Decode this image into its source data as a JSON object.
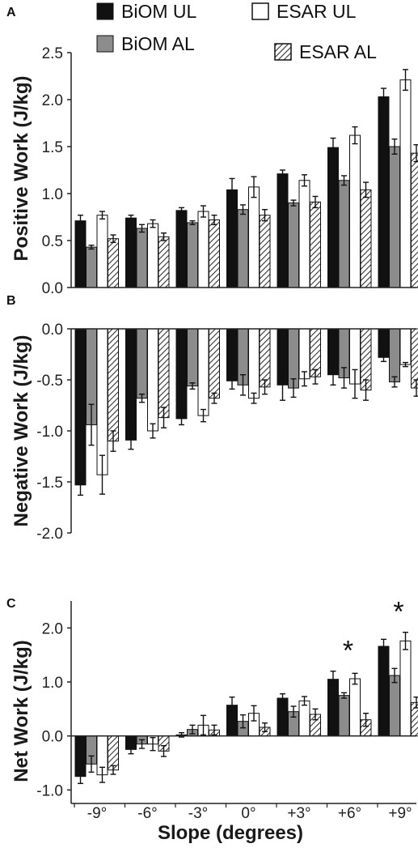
{
  "chart_data": [
    {
      "panel_label": "A",
      "type": "bar",
      "ylabel": "Positive Work (J/kg)",
      "ylim": [
        0,
        2.5
      ],
      "yticks": [
        "0.0",
        "0.5",
        "1.0",
        "1.5",
        "2.0",
        "2.5"
      ],
      "yticks_values": [
        0,
        0.5,
        1.0,
        1.5,
        2.0,
        2.5
      ],
      "categories": [
        "-9°",
        "-6°",
        "-3°",
        "0°",
        "+3°",
        "+6°",
        "+9°"
      ],
      "series": [
        {
          "name": "BiOM UL",
          "values": [
            0.71,
            0.74,
            0.82,
            1.04,
            1.21,
            1.49,
            2.03
          ],
          "errors": [
            0.06,
            0.03,
            0.03,
            0.12,
            0.04,
            0.1,
            0.09
          ]
        },
        {
          "name": "BiOM AL",
          "values": [
            0.43,
            0.63,
            0.69,
            0.83,
            0.9,
            1.14,
            1.5
          ],
          "errors": [
            0.02,
            0.04,
            0.02,
            0.05,
            0.03,
            0.05,
            0.08
          ]
        },
        {
          "name": "ESAR UL",
          "values": [
            0.77,
            0.68,
            0.81,
            1.07,
            1.14,
            1.62,
            2.21
          ],
          "errors": [
            0.04,
            0.04,
            0.06,
            0.11,
            0.06,
            0.09,
            0.11
          ]
        },
        {
          "name": "ESAR AL",
          "values": [
            0.52,
            0.54,
            0.72,
            0.77,
            0.91,
            1.04,
            1.43
          ],
          "errors": [
            0.04,
            0.04,
            0.05,
            0.06,
            0.06,
            0.08,
            0.09
          ]
        }
      ],
      "annotations": []
    },
    {
      "panel_label": "B",
      "type": "bar",
      "ylabel": "Negative Work (J/kg)",
      "ylim": [
        -2.0,
        0
      ],
      "yticks": [
        "0.0",
        "-0.5",
        "-1.0",
        "-1.5",
        "-2.0"
      ],
      "yticks_values": [
        0,
        -0.5,
        -1.0,
        -1.5,
        -2.0
      ],
      "categories": [
        "-9°",
        "-6°",
        "-3°",
        "0°",
        "+3°",
        "+6°",
        "+9°"
      ],
      "series": [
        {
          "name": "BiOM UL",
          "values": [
            -1.53,
            -1.09,
            -0.88,
            -0.51,
            -0.55,
            -0.45,
            -0.28
          ],
          "errors": [
            0.1,
            0.09,
            0.06,
            0.08,
            0.15,
            0.1,
            0.04
          ]
        },
        {
          "name": "BiOM AL",
          "values": [
            -0.94,
            -0.68,
            -0.56,
            -0.55,
            -0.58,
            -0.48,
            -0.52
          ],
          "errors": [
            0.2,
            0.04,
            0.03,
            0.1,
            0.09,
            0.1,
            0.05
          ]
        },
        {
          "name": "ESAR UL",
          "values": [
            -1.43,
            -1.0,
            -0.85,
            -0.68,
            -0.49,
            -0.54,
            -0.35
          ],
          "errors": [
            0.19,
            0.07,
            0.06,
            0.05,
            0.07,
            0.14,
            0.02
          ]
        },
        {
          "name": "ESAR AL",
          "values": [
            -1.1,
            -0.87,
            -0.68,
            -0.57,
            -0.47,
            -0.6,
            -0.58
          ],
          "errors": [
            0.1,
            0.1,
            0.05,
            0.07,
            0.07,
            0.1,
            0.08
          ]
        }
      ],
      "annotations": []
    },
    {
      "panel_label": "C",
      "type": "bar",
      "ylabel": "Net Work (J/kg)",
      "xlabel": "Slope (degrees)",
      "ylim": [
        -1.25,
        2.5
      ],
      "yticks": [
        "2.0",
        "1.0",
        "0.0",
        "-1.0"
      ],
      "yticks_values": [
        2.0,
        1.0,
        0.0,
        -1.0
      ],
      "categories": [
        "-9°",
        "-6°",
        "-3°",
        "0°",
        "+3°",
        "+6°",
        "+9°"
      ],
      "series": [
        {
          "name": "BiOM UL",
          "values": [
            -0.75,
            -0.25,
            0.02,
            0.57,
            0.7,
            1.05,
            1.66
          ],
          "errors": [
            0.13,
            0.08,
            0.04,
            0.15,
            0.08,
            0.15,
            0.13
          ]
        },
        {
          "name": "BiOM AL",
          "values": [
            -0.52,
            -0.15,
            0.12,
            0.27,
            0.45,
            0.75,
            1.12
          ],
          "errors": [
            0.15,
            0.08,
            0.08,
            0.12,
            0.1,
            0.05,
            0.13
          ]
        },
        {
          "name": "ESAR UL",
          "values": [
            -0.72,
            -0.15,
            0.2,
            0.42,
            0.65,
            1.06,
            1.76
          ],
          "errors": [
            0.14,
            0.12,
            0.18,
            0.14,
            0.08,
            0.1,
            0.16
          ]
        },
        {
          "name": "ESAR AL",
          "values": [
            -0.63,
            -0.28,
            0.11,
            0.16,
            0.4,
            0.3,
            0.62
          ],
          "errors": [
            0.08,
            0.1,
            0.09,
            0.08,
            0.1,
            0.12,
            0.1
          ]
        }
      ],
      "annotations": [
        {
          "text": "*",
          "category_index": 5
        },
        {
          "text": "*",
          "category_index": 6
        }
      ]
    }
  ],
  "legend": [
    {
      "label": "BiOM UL",
      "style": "black"
    },
    {
      "label": "BiOM AL",
      "style": "gray"
    },
    {
      "label": "ESAR UL",
      "style": "white"
    },
    {
      "label": "ESAR AL",
      "style": "hatched"
    }
  ],
  "colors": {
    "biom_ul": "#111111",
    "biom_al": "#8c8c8c",
    "esar_ul": "#ffffff",
    "esar_al": "hatched"
  }
}
